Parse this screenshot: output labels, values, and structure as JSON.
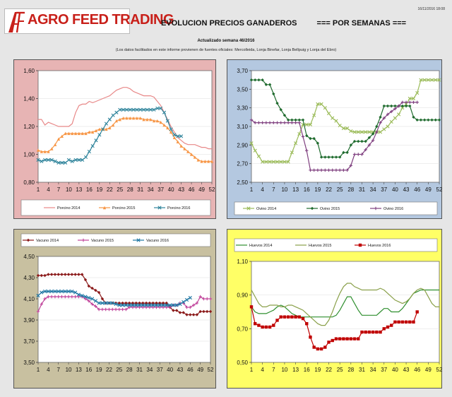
{
  "header": {
    "logo_mark": "ATF",
    "logo_text": "AGRO FEED TRADING",
    "timestamp": "16/11/2016 18:08",
    "title_left": "EVOLUCION PRECIOS GANADEROS",
    "title_right": "=== POR SEMANAS ===",
    "subtitle": "Actualizado semana 46/2016",
    "note": "(Los datos facilitados en este informe provienen de fuentes oficiales: Mercolleida, Lonja Binefar, Lonja Bellpuig y Lonja del Ebro)"
  },
  "colors": {
    "page_bg": "#e6e6e6",
    "porcino_bg": "#e7b4b4",
    "ovino_bg": "#b4c8e0",
    "vacuno_bg": "#c8c0a0",
    "huevos_bg": "#ffff66"
  },
  "chart_data": [
    {
      "id": "porcino",
      "type": "line",
      "ylim": [
        0.8,
        1.6
      ],
      "yticks": [
        0.8,
        1.0,
        1.2,
        1.4,
        1.6
      ],
      "ytick_labels": [
        "0,80",
        "1,00",
        "1,20",
        "1,40",
        "1,60"
      ],
      "xticks": [
        1,
        4,
        7,
        10,
        13,
        16,
        19,
        22,
        25,
        28,
        31,
        34,
        37,
        40,
        43,
        46,
        49,
        52
      ],
      "series": [
        {
          "name": "Porcino 2014",
          "color": "#e88888",
          "marker": "none",
          "values": [
            1.25,
            1.25,
            1.21,
            1.23,
            1.22,
            1.21,
            1.2,
            1.2,
            1.2,
            1.2,
            1.22,
            1.3,
            1.35,
            1.36,
            1.36,
            1.38,
            1.37,
            1.38,
            1.39,
            1.4,
            1.41,
            1.42,
            1.44,
            1.46,
            1.47,
            1.48,
            1.48,
            1.47,
            1.45,
            1.44,
            1.43,
            1.42,
            1.42,
            1.42,
            1.41,
            1.38,
            1.35,
            1.3,
            1.25,
            1.2,
            1.16,
            1.12,
            1.1,
            1.08,
            1.07,
            1.07,
            1.07,
            1.06,
            1.05,
            1.05,
            1.04,
            1.04
          ]
        },
        {
          "name": "Porcino 2015",
          "color": "#f79646",
          "marker": "triangle",
          "values": [
            1.03,
            1.02,
            1.02,
            1.02,
            1.04,
            1.07,
            1.11,
            1.13,
            1.15,
            1.15,
            1.15,
            1.15,
            1.15,
            1.15,
            1.15,
            1.16,
            1.16,
            1.17,
            1.18,
            1.18,
            1.18,
            1.19,
            1.21,
            1.24,
            1.25,
            1.26,
            1.26,
            1.26,
            1.26,
            1.26,
            1.26,
            1.25,
            1.25,
            1.25,
            1.24,
            1.24,
            1.23,
            1.21,
            1.19,
            1.16,
            1.12,
            1.09,
            1.06,
            1.04,
            1.02,
            1.0,
            0.98,
            0.96,
            0.95,
            0.95,
            0.95,
            0.95
          ]
        },
        {
          "name": "Porcino 2016",
          "color": "#31859c",
          "marker": "cross",
          "values": [
            0.96,
            0.95,
            0.96,
            0.96,
            0.96,
            0.95,
            0.94,
            0.94,
            0.94,
            0.96,
            0.95,
            0.96,
            0.96,
            0.96,
            0.98,
            1.02,
            1.06,
            1.1,
            1.14,
            1.18,
            1.22,
            1.25,
            1.28,
            1.3,
            1.32,
            1.32,
            1.32,
            1.32,
            1.32,
            1.32,
            1.32,
            1.32,
            1.32,
            1.32,
            1.32,
            1.33,
            1.33,
            1.3,
            1.24,
            1.18,
            1.14,
            1.13,
            1.13
          ]
        }
      ]
    },
    {
      "id": "ovino",
      "type": "line",
      "ylim": [
        2.5,
        3.7
      ],
      "yticks": [
        2.5,
        2.7,
        2.9,
        3.1,
        3.3,
        3.5,
        3.7
      ],
      "ytick_labels": [
        "2,50",
        "2,70",
        "2,90",
        "3,10",
        "3,30",
        "3,50",
        "3,70"
      ],
      "xticks": [
        1,
        4,
        7,
        10,
        13,
        16,
        19,
        22,
        25,
        28,
        31,
        34,
        37,
        40,
        43,
        46,
        49,
        52
      ],
      "series": [
        {
          "name": "Ovino 2014",
          "color": "#9bbb59",
          "marker": "cross",
          "values": [
            2.92,
            2.84,
            2.78,
            2.72,
            2.72,
            2.72,
            2.72,
            2.72,
            2.72,
            2.72,
            2.72,
            2.82,
            2.92,
            3.02,
            3.12,
            3.12,
            3.12,
            3.22,
            3.34,
            3.34,
            3.3,
            3.24,
            3.19,
            3.16,
            3.11,
            3.08,
            3.08,
            3.05,
            3.04,
            3.04,
            3.04,
            3.04,
            3.04,
            3.04,
            3.04,
            3.04,
            3.07,
            3.1,
            3.15,
            3.19,
            3.23,
            3.3,
            3.34,
            3.4,
            3.4,
            3.46,
            3.6,
            3.6,
            3.6,
            3.6,
            3.6,
            3.6
          ]
        },
        {
          "name": "Ovino 2015",
          "color": "#1f6b2e",
          "marker": "diamond",
          "values": [
            3.6,
            3.6,
            3.6,
            3.6,
            3.55,
            3.55,
            3.45,
            3.35,
            3.28,
            3.22,
            3.17,
            3.17,
            3.17,
            3.17,
            3.17,
            3.0,
            2.97,
            2.97,
            2.92,
            2.77,
            2.77,
            2.77,
            2.77,
            2.77,
            2.77,
            2.82,
            2.82,
            2.9,
            2.94,
            2.94,
            2.94,
            2.94,
            2.98,
            3.02,
            3.1,
            3.2,
            3.32,
            3.32,
            3.32,
            3.32,
            3.32,
            3.32,
            3.32,
            3.32,
            3.2,
            3.17,
            3.17,
            3.17,
            3.17,
            3.17,
            3.17,
            3.17
          ]
        },
        {
          "name": "Ovino 2016",
          "color": "#7f3f7f",
          "marker": "plus",
          "values": [
            3.17,
            3.14,
            3.14,
            3.14,
            3.14,
            3.14,
            3.14,
            3.14,
            3.14,
            3.14,
            3.14,
            3.14,
            3.14,
            3.14,
            2.99,
            2.84,
            2.63,
            2.63,
            2.63,
            2.63,
            2.63,
            2.63,
            2.63,
            2.63,
            2.63,
            2.63,
            2.63,
            2.68,
            2.8,
            2.8,
            2.8,
            2.85,
            2.9,
            2.95,
            3.04,
            3.14,
            3.19,
            3.23,
            3.26,
            3.29,
            3.32,
            3.36,
            3.36,
            3.36,
            3.36,
            3.36
          ]
        }
      ]
    },
    {
      "id": "vacuno",
      "type": "line",
      "ylim": [
        3.5,
        4.5
      ],
      "yticks": [
        3.5,
        3.7,
        3.9,
        4.1,
        4.3,
        4.5
      ],
      "ytick_labels": [
        "3,50",
        "3,70",
        "3,90",
        "4,10",
        "4,30",
        "4,50"
      ],
      "xticks": [
        1,
        4,
        7,
        10,
        13,
        16,
        19,
        22,
        25,
        28,
        31,
        34,
        37,
        40,
        43,
        46,
        49,
        52
      ],
      "series": [
        {
          "name": "Vacuno 2014",
          "color": "#8b1a1a",
          "marker": "diamond",
          "values": [
            4.32,
            4.32,
            4.32,
            4.33,
            4.33,
            4.33,
            4.33,
            4.33,
            4.33,
            4.33,
            4.33,
            4.33,
            4.33,
            4.33,
            4.28,
            4.22,
            4.2,
            4.18,
            4.16,
            4.1,
            4.06,
            4.06,
            4.06,
            4.06,
            4.06,
            4.06,
            4.06,
            4.06,
            4.06,
            4.06,
            4.06,
            4.06,
            4.06,
            4.06,
            4.06,
            4.06,
            4.06,
            4.06,
            4.06,
            4.02,
            3.99,
            3.99,
            3.97,
            3.97,
            3.95,
            3.95,
            3.95,
            3.95,
            3.98,
            3.98,
            3.98,
            3.98
          ]
        },
        {
          "name": "Vacuno 2015",
          "color": "#c0429a",
          "marker": "plus",
          "values": [
            3.98,
            4.05,
            4.1,
            4.12,
            4.12,
            4.12,
            4.12,
            4.12,
            4.12,
            4.12,
            4.12,
            4.12,
            4.12,
            4.12,
            4.1,
            4.08,
            4.05,
            4.03,
            4.0,
            4.0,
            4.0,
            4.0,
            4.0,
            4.0,
            4.0,
            4.0,
            4.0,
            4.02,
            4.02,
            4.02,
            4.02,
            4.02,
            4.02,
            4.02,
            4.02,
            4.02,
            4.02,
            4.02,
            4.02,
            4.02,
            4.04,
            4.04,
            4.06,
            4.06,
            4.02,
            4.02,
            4.04,
            4.06,
            4.12,
            4.1,
            4.1,
            4.1
          ]
        },
        {
          "name": "Vacuno 2016",
          "color": "#1f77a4",
          "marker": "cross",
          "values": [
            4.13,
            4.16,
            4.17,
            4.17,
            4.17,
            4.17,
            4.17,
            4.17,
            4.17,
            4.17,
            4.17,
            4.16,
            4.14,
            4.13,
            4.12,
            4.11,
            4.1,
            4.08,
            4.06,
            4.06,
            4.06,
            4.06,
            4.06,
            4.05,
            4.04,
            4.04,
            4.04,
            4.04,
            4.04,
            4.04,
            4.04,
            4.04,
            4.04,
            4.04,
            4.04,
            4.04,
            4.04,
            4.04,
            4.04,
            4.04,
            4.04,
            4.04,
            4.05,
            4.07,
            4.09,
            4.11
          ]
        }
      ]
    },
    {
      "id": "huevos",
      "type": "line",
      "ylim": [
        0.5,
        1.1
      ],
      "yticks": [
        0.5,
        0.7,
        0.9,
        1.1
      ],
      "ytick_labels": [
        "0,50",
        "0,70",
        "0,90",
        "1,10"
      ],
      "xticks": [
        1,
        4,
        7,
        10,
        13,
        16,
        19,
        22,
        25,
        28,
        31,
        34,
        37,
        40,
        43,
        46,
        49,
        52
      ],
      "series": [
        {
          "name": "Huevos 2014",
          "color": "#2f8f2f",
          "marker": "none",
          "values": [
            0.83,
            0.8,
            0.79,
            0.79,
            0.79,
            0.8,
            0.81,
            0.83,
            0.84,
            0.83,
            0.81,
            0.79,
            0.78,
            0.77,
            0.77,
            0.77,
            0.77,
            0.77,
            0.77,
            0.77,
            0.77,
            0.77,
            0.77,
            0.78,
            0.81,
            0.85,
            0.89,
            0.89,
            0.85,
            0.81,
            0.78,
            0.78,
            0.78,
            0.78,
            0.78,
            0.8,
            0.82,
            0.82,
            0.8,
            0.8,
            0.8,
            0.82,
            0.85,
            0.88,
            0.91,
            0.92,
            0.93,
            0.93,
            0.93,
            0.93,
            0.93,
            0.93
          ]
        },
        {
          "name": "Huevos 2015",
          "color": "#8aa04a",
          "marker": "none",
          "values": [
            0.93,
            0.89,
            0.85,
            0.83,
            0.83,
            0.84,
            0.84,
            0.84,
            0.83,
            0.83,
            0.84,
            0.84,
            0.83,
            0.82,
            0.81,
            0.79,
            0.77,
            0.75,
            0.73,
            0.72,
            0.72,
            0.75,
            0.8,
            0.86,
            0.91,
            0.95,
            0.97,
            0.97,
            0.95,
            0.94,
            0.93,
            0.93,
            0.93,
            0.93,
            0.93,
            0.94,
            0.93,
            0.91,
            0.89,
            0.87,
            0.86,
            0.85,
            0.86,
            0.88,
            0.91,
            0.93,
            0.94,
            0.93,
            0.89,
            0.85,
            0.83,
            0.83
          ]
        },
        {
          "name": "Huevos 2016",
          "color": "#c00000",
          "marker": "square",
          "values": [
            0.83,
            0.73,
            0.72,
            0.71,
            0.71,
            0.71,
            0.72,
            0.75,
            0.77,
            0.77,
            0.77,
            0.77,
            0.77,
            0.77,
            0.76,
            0.73,
            0.65,
            0.59,
            0.58,
            0.58,
            0.59,
            0.62,
            0.63,
            0.64,
            0.64,
            0.64,
            0.64,
            0.64,
            0.64,
            0.64,
            0.68,
            0.68,
            0.68,
            0.68,
            0.68,
            0.68,
            0.7,
            0.71,
            0.72,
            0.74,
            0.74,
            0.74,
            0.74,
            0.74,
            0.74,
            0.8
          ]
        }
      ]
    }
  ]
}
